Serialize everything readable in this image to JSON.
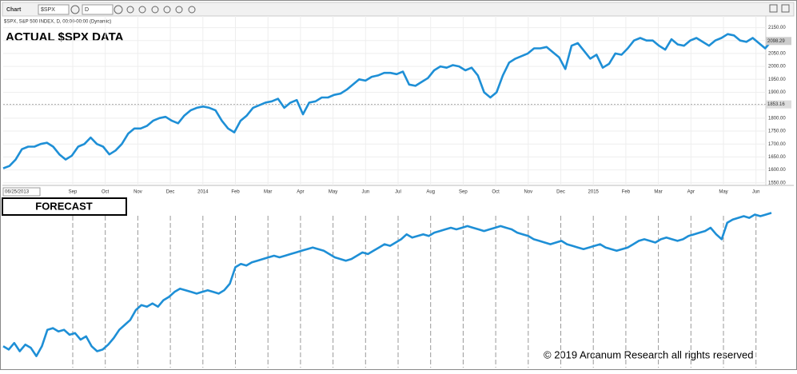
{
  "toolbar": {
    "title": "Chart",
    "symbol": "$SPX",
    "interval": "D"
  },
  "chart_data": [
    {
      "type": "line",
      "title": "ACTUAL $SPX DATA",
      "subtitle": "$SPX, S&P 500 INDEX, D, 00:00-00:00 (Dynamic)",
      "color": "#1e8fd6",
      "start_date": "06/25/2013",
      "x_labels": [
        "Sep",
        "Oct",
        "Nov",
        "Dec",
        "2014",
        "Feb",
        "Mar",
        "Apr",
        "May",
        "Jun",
        "Jul",
        "Aug",
        "Sep",
        "Oct",
        "Nov",
        "Dec",
        "2015",
        "Feb",
        "Mar",
        "Apr",
        "May",
        "Jun"
      ],
      "values": [
        1606,
        1615,
        1640,
        1680,
        1690,
        1690,
        1700,
        1705,
        1690,
        1660,
        1640,
        1655,
        1690,
        1700,
        1725,
        1700,
        1690,
        1660,
        1675,
        1700,
        1740,
        1760,
        1760,
        1770,
        1790,
        1800,
        1805,
        1790,
        1780,
        1810,
        1830,
        1840,
        1845,
        1840,
        1830,
        1790,
        1760,
        1745,
        1790,
        1810,
        1840,
        1850,
        1860,
        1865,
        1875,
        1840,
        1860,
        1870,
        1815,
        1860,
        1865,
        1880,
        1880,
        1890,
        1895,
        1910,
        1930,
        1950,
        1945,
        1960,
        1965,
        1975,
        1975,
        1970,
        1980,
        1930,
        1925,
        1940,
        1955,
        1985,
        2000,
        1995,
        2005,
        2000,
        1985,
        1995,
        1965,
        1900,
        1880,
        1900,
        1965,
        2015,
        2030,
        2040,
        2050,
        2070,
        2070,
        2075,
        2055,
        2035,
        1990,
        2080,
        2090,
        2060,
        2030,
        2045,
        1995,
        2010,
        2050,
        2045,
        2070,
        2100,
        2110,
        2100,
        2100,
        2080,
        2065,
        2105,
        2085,
        2080,
        2100,
        2110,
        2095,
        2080,
        2100,
        2110,
        2125,
        2120,
        2100,
        2095,
        2110,
        2090,
        2070,
        2098
      ],
      "ylim": [
        1540,
        2195
      ],
      "yticks": [
        {
          "value": 1550,
          "label": "1550.00"
        },
        {
          "value": 1600,
          "label": "1600.00"
        },
        {
          "value": 1650,
          "label": "1650.00"
        },
        {
          "value": 1700,
          "label": "1700.00"
        },
        {
          "value": 1750,
          "label": "1750.00"
        },
        {
          "value": 1800,
          "label": "1800.00"
        },
        {
          "value": 1850,
          "label": "1850.00"
        },
        {
          "value": 1900,
          "label": "1900.00"
        },
        {
          "value": 1950,
          "label": "1950.00"
        },
        {
          "value": 2000,
          "label": "2000.00"
        },
        {
          "value": 2050,
          "label": "2050.00"
        },
        {
          "value": 2100,
          "label": "2100.00"
        },
        {
          "value": 2150,
          "label": "2150.00"
        }
      ],
      "price_marker": 2098.29,
      "level_line": 1853.16,
      "grid": true
    },
    {
      "type": "line",
      "title": "FORECAST",
      "color": "#1e8fd6",
      "values": [
        12,
        10,
        14,
        9,
        13,
        11,
        6,
        12,
        22,
        23,
        21,
        22,
        19,
        20,
        16,
        18,
        12,
        9,
        10,
        13,
        17,
        22,
        25,
        28,
        34,
        37,
        36,
        38,
        36,
        40,
        42,
        45,
        47,
        46,
        45,
        44,
        45,
        46,
        45,
        44,
        46,
        50,
        60,
        62,
        61,
        63,
        64,
        65,
        66,
        67,
        66,
        67,
        68,
        69,
        70,
        71,
        72,
        71,
        70,
        68,
        66,
        65,
        64,
        65,
        67,
        69,
        68,
        70,
        72,
        74,
        73,
        75,
        77,
        80,
        78,
        79,
        80,
        79,
        81,
        82,
        83,
        84,
        83,
        84,
        85,
        84,
        83,
        82,
        83,
        84,
        85,
        84,
        83,
        81,
        80,
        79,
        77,
        76,
        75,
        74,
        75,
        76,
        74,
        73,
        72,
        71,
        72,
        73,
        74,
        72,
        71,
        70,
        71,
        72,
        74,
        76,
        77,
        76,
        75,
        77,
        78,
        77,
        76,
        77,
        79,
        80,
        81,
        82,
        84,
        80,
        77,
        87,
        89,
        90,
        91,
        90,
        92,
        91,
        92,
        93
      ],
      "ylim": [
        0,
        100
      ],
      "grid": true
    }
  ],
  "copyright": "© 2019 Arcanum Research all rights reserved"
}
